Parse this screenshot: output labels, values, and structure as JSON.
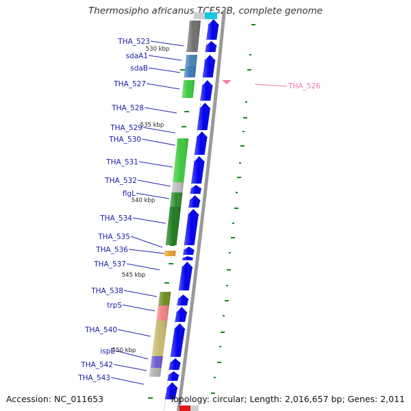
{
  "title": "Thermosipho africanus TCF52B, complete genome",
  "footer": {
    "accession": "Accession: NC_011653",
    "topology": "Topology: circular; Length: 2,016,657 bp; Genes: 2,011"
  },
  "colors": {
    "cds_arrow": "#0000ee",
    "gene_label": "#1a1aa8",
    "label_line": "#2323b8",
    "highlight_label": "#f07ab0",
    "tick": "#0a8a1f",
    "backbone_shadow": "#9a9a9a"
  },
  "kbp_ticks": [
    "530 kbp",
    "535 kbp",
    "540 kbp",
    "545 kbp",
    "550 kbp"
  ],
  "highlight": {
    "label": "THA_526"
  },
  "genes": [
    {
      "label": "THA_523",
      "color": "#707070"
    },
    {
      "label": "sdaA1",
      "color": "#4682b4"
    },
    {
      "label": "sdaB",
      "color": "#3a78b8"
    },
    {
      "label": "THA_527",
      "color": "#3cc83c"
    },
    {
      "label": "THA_528",
      "color": ""
    },
    {
      "label": "THA_529",
      "color": ""
    },
    {
      "label": "THA_530",
      "color": "#3cc83c"
    },
    {
      "label": "THA_531",
      "color": "#3cc83c"
    },
    {
      "label": "THA_532",
      "color": "#bdbdbd"
    },
    {
      "label": "flgL",
      "color": "#2e8b2e"
    },
    {
      "label": "THA_534",
      "color": "#1f7a1f"
    },
    {
      "label": "THA_535",
      "color": ""
    },
    {
      "label": "THA_536",
      "color": "#e8a030"
    },
    {
      "label": "THA_537",
      "color": ""
    },
    {
      "label": "THA_538",
      "color": "#6b8e23"
    },
    {
      "label": "trpS",
      "color": "#f08080"
    },
    {
      "label": "THA_540",
      "color": "#c8b870"
    },
    {
      "label": "ispE",
      "color": "#6a5acd"
    },
    {
      "label": "THA_542",
      "color": "#b0b0b0"
    },
    {
      "label": "THA_543",
      "color": ""
    }
  ]
}
